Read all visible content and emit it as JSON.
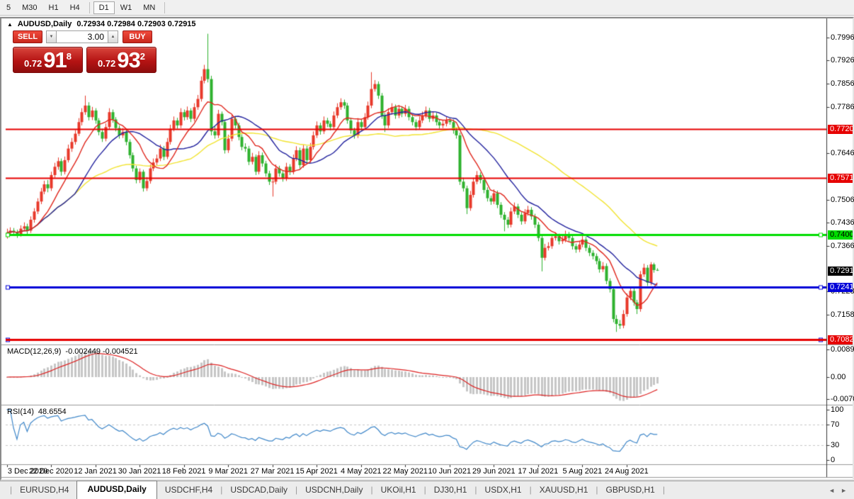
{
  "toolbar": {
    "timeframes": [
      "5",
      "M30",
      "H1",
      "H4",
      "D1",
      "W1",
      "MN"
    ],
    "active": "D1"
  },
  "icons": {
    "collapse": "▲",
    "spin_down": "▼",
    "spin_up": "▲",
    "tab_prev": "◄",
    "tab_next": "►"
  },
  "chart_header": {
    "title": "AUDUSD,Daily",
    "ohlc": "0.72934 0.72984 0.72903 0.72915"
  },
  "trade_panel": {
    "sell_label": "SELL",
    "buy_label": "BUY",
    "volume": "3.00",
    "sell_price": {
      "small": "0.72",
      "big": "91",
      "sup": "8"
    },
    "buy_price": {
      "small": "0.72",
      "big": "93",
      "sup": "2"
    }
  },
  "price_axis": {
    "ticks": [
      "0.79960",
      "0.79260",
      "0.78560",
      "0.77860",
      "0.76460",
      "0.75060",
      "0.74360",
      "0.73660",
      "0.72280",
      "0.71580"
    ]
  },
  "current_price": {
    "value": 0.72915,
    "label": "0.72915",
    "badge_bg": "#000000",
    "badge_text": "#ffffff"
  },
  "indicators": {
    "macd": {
      "label": "MACD(12,26,9)",
      "values": "-0.002449 -0.004521",
      "axis": [
        "0.00890",
        "0.00",
        "-0.00701"
      ]
    },
    "rsi": {
      "label": "RSI(14)",
      "value": "48.6554",
      "axis": [
        "100",
        "70",
        "30",
        "0"
      ]
    }
  },
  "date_axis": {
    "labels": [
      {
        "text": "3 Dec 2020",
        "index": 0
      },
      {
        "text": "22 Dec 2020",
        "index": 13
      },
      {
        "text": "12 Jan 2021",
        "index": 26
      },
      {
        "text": "30 Jan 2021",
        "index": 39
      },
      {
        "text": "18 Feb 2021",
        "index": 52
      },
      {
        "text": "9 Mar 2021",
        "index": 65
      },
      {
        "text": "27 Mar 2021",
        "index": 78
      },
      {
        "text": "15 Apr 2021",
        "index": 91
      },
      {
        "text": "4 May 2021",
        "index": 104
      },
      {
        "text": "22 May 2021",
        "index": 117
      },
      {
        "text": "10 Jun 2021",
        "index": 130
      },
      {
        "text": "29 Jun 2021",
        "index": 143
      },
      {
        "text": "17 Jul 2021",
        "index": 156
      },
      {
        "text": "5 Aug 2021",
        "index": 169
      },
      {
        "text": "24 Aug 2021",
        "index": 182
      }
    ]
  },
  "tabs": {
    "items": [
      "EURUSD,H4",
      "AUDUSD,Daily",
      "USDCHF,H4",
      "USDCAD,Daily",
      "USDCNH,Daily",
      "UKOil,H1",
      "DJ30,H1",
      "USDX,H1",
      "XAUUSD,H1",
      "GBPUSD,H1"
    ],
    "active_index": 1
  },
  "chart_data": {
    "type": "candlestick",
    "symbol": "AUDUSD",
    "period": "Daily",
    "ylim": [
      0.7068,
      0.80447
    ],
    "colors": {
      "bull": "#e8392a",
      "bear": "#2eb22e",
      "background": "#ffffff"
    },
    "moving_averages": [
      {
        "period": 55,
        "color": "#f2e431"
      },
      {
        "period": 21,
        "color": "#22229e"
      },
      {
        "period": 10,
        "color": "#e0261c"
      }
    ],
    "hlines": [
      {
        "price": 0.772,
        "label": "0.77200",
        "color": "#e60000",
        "text_color": "#ffffff",
        "width": 2,
        "handles": false
      },
      {
        "price": 0.75716,
        "label": "0.75716",
        "color": "#e60000",
        "text_color": "#ffffff",
        "width": 2,
        "handles": false
      },
      {
        "price": 0.74007,
        "label": "0.74007",
        "color": "#00dd00",
        "text_color": "#000000",
        "width": 3,
        "handles": true
      },
      {
        "price": 0.72411,
        "label": "0.72411",
        "color": "#0000d8",
        "text_color": "#ffffff",
        "width": 3,
        "handles": true
      },
      {
        "price": 0.70836,
        "label": "0.70836",
        "color": "#0000d8",
        "text_color": "#ffffff",
        "width": 3,
        "handles": true
      },
      {
        "price": 0.7082,
        "label": "0.70820",
        "color": "#e60000",
        "text_color": "#ffffff",
        "width": 3,
        "handles": false
      }
    ],
    "macd": {
      "fast": 12,
      "slow": 26,
      "signal": 9,
      "ylim": [
        -0.00866,
        0.01003
      ],
      "histogram_color": "#c6c6c6",
      "signal_color": "#dd2222"
    },
    "rsi": {
      "period": 14,
      "ylim": [
        -8.3,
        106.9
      ],
      "color": "#3f87c9",
      "levels": [
        70,
        30
      ]
    },
    "ohlc": [
      [
        0.7395,
        0.7418,
        0.7388,
        0.7405
      ],
      [
        0.7405,
        0.7422,
        0.7398,
        0.7412
      ],
      [
        0.7412,
        0.742,
        0.7396,
        0.7408
      ],
      [
        0.7408,
        0.7415,
        0.739,
        0.7402
      ],
      [
        0.7402,
        0.7428,
        0.7394,
        0.7418
      ],
      [
        0.7418,
        0.7437,
        0.741,
        0.7425
      ],
      [
        0.7425,
        0.7433,
        0.74,
        0.7412
      ],
      [
        0.7412,
        0.7455,
        0.7405,
        0.7445
      ],
      [
        0.7445,
        0.748,
        0.7436,
        0.747
      ],
      [
        0.747,
        0.751,
        0.7462,
        0.75
      ],
      [
        0.75,
        0.7541,
        0.7492,
        0.753
      ],
      [
        0.753,
        0.7563,
        0.7522,
        0.7552
      ],
      [
        0.7552,
        0.7565,
        0.7528,
        0.754
      ],
      [
        0.754,
        0.759,
        0.7532,
        0.758
      ],
      [
        0.758,
        0.7617,
        0.7572,
        0.7605
      ],
      [
        0.7605,
        0.7633,
        0.7596,
        0.7622
      ],
      [
        0.7622,
        0.763,
        0.7578,
        0.759
      ],
      [
        0.759,
        0.7636,
        0.7582,
        0.7625
      ],
      [
        0.7625,
        0.7672,
        0.7618,
        0.766
      ],
      [
        0.766,
        0.7692,
        0.765,
        0.768
      ],
      [
        0.768,
        0.7716,
        0.7672,
        0.7705
      ],
      [
        0.7705,
        0.7752,
        0.7698,
        0.774
      ],
      [
        0.774,
        0.7782,
        0.773,
        0.777
      ],
      [
        0.777,
        0.782,
        0.7762,
        0.779
      ],
      [
        0.779,
        0.78,
        0.7745,
        0.7755
      ],
      [
        0.7755,
        0.7786,
        0.7746,
        0.7775
      ],
      [
        0.7775,
        0.7782,
        0.7735,
        0.7745
      ],
      [
        0.7745,
        0.7752,
        0.77,
        0.771
      ],
      [
        0.771,
        0.772,
        0.768,
        0.769
      ],
      [
        0.769,
        0.7736,
        0.7682,
        0.7725
      ],
      [
        0.7725,
        0.7782,
        0.7718,
        0.777
      ],
      [
        0.777,
        0.7778,
        0.7738,
        0.7748
      ],
      [
        0.7748,
        0.7755,
        0.7712,
        0.7722
      ],
      [
        0.7722,
        0.773,
        0.769,
        0.77
      ],
      [
        0.77,
        0.7722,
        0.7692,
        0.771
      ],
      [
        0.771,
        0.7718,
        0.767,
        0.768
      ],
      [
        0.768,
        0.7688,
        0.763,
        0.764
      ],
      [
        0.764,
        0.7648,
        0.759,
        0.76
      ],
      [
        0.76,
        0.7608,
        0.7555,
        0.7565
      ],
      [
        0.7565,
        0.76,
        0.7556,
        0.759
      ],
      [
        0.759,
        0.7596,
        0.753,
        0.754
      ],
      [
        0.754,
        0.7574,
        0.7532,
        0.7562
      ],
      [
        0.7562,
        0.7612,
        0.7554,
        0.76
      ],
      [
        0.76,
        0.763,
        0.7592,
        0.7618
      ],
      [
        0.7618,
        0.7642,
        0.761,
        0.763
      ],
      [
        0.763,
        0.7672,
        0.7622,
        0.766
      ],
      [
        0.766,
        0.7668,
        0.7625,
        0.7635
      ],
      [
        0.7635,
        0.7692,
        0.7628,
        0.768
      ],
      [
        0.768,
        0.7732,
        0.7672,
        0.772
      ],
      [
        0.772,
        0.7757,
        0.7712,
        0.7745
      ],
      [
        0.7745,
        0.7753,
        0.772,
        0.773
      ],
      [
        0.773,
        0.7782,
        0.7722,
        0.777
      ],
      [
        0.777,
        0.7778,
        0.7745,
        0.7755
      ],
      [
        0.7755,
        0.7787,
        0.7747,
        0.7775
      ],
      [
        0.7775,
        0.7782,
        0.774,
        0.775
      ],
      [
        0.775,
        0.7797,
        0.7742,
        0.7785
      ],
      [
        0.7785,
        0.7822,
        0.7777,
        0.781
      ],
      [
        0.781,
        0.7878,
        0.7802,
        0.7865
      ],
      [
        0.7865,
        0.7913,
        0.7857,
        0.79
      ],
      [
        0.79,
        0.8007,
        0.786,
        0.787
      ],
      [
        0.787,
        0.788,
        0.77,
        0.7712
      ],
      [
        0.7712,
        0.773,
        0.769,
        0.77
      ],
      [
        0.77,
        0.7777,
        0.7692,
        0.7765
      ],
      [
        0.7765,
        0.7772,
        0.773,
        0.774
      ],
      [
        0.774,
        0.7748,
        0.7645,
        0.7655
      ],
      [
        0.7655,
        0.7702,
        0.7647,
        0.769
      ],
      [
        0.769,
        0.7762,
        0.7682,
        0.775
      ],
      [
        0.775,
        0.7758,
        0.772,
        0.773
      ],
      [
        0.773,
        0.7738,
        0.7685,
        0.7695
      ],
      [
        0.7695,
        0.7703,
        0.7655,
        0.7665
      ],
      [
        0.7665,
        0.7676,
        0.765,
        0.766
      ],
      [
        0.766,
        0.7668,
        0.761,
        0.762
      ],
      [
        0.762,
        0.7647,
        0.7612,
        0.7635
      ],
      [
        0.7635,
        0.7642,
        0.758,
        0.759
      ],
      [
        0.759,
        0.7652,
        0.7582,
        0.764
      ],
      [
        0.764,
        0.7648,
        0.7605,
        0.7615
      ],
      [
        0.7615,
        0.7623,
        0.7575,
        0.7585
      ],
      [
        0.7585,
        0.7593,
        0.755,
        0.756
      ],
      [
        0.756,
        0.7572,
        0.7515,
        0.756
      ],
      [
        0.756,
        0.7612,
        0.7552,
        0.76
      ],
      [
        0.76,
        0.7608,
        0.7575,
        0.7585
      ],
      [
        0.7585,
        0.7593,
        0.756,
        0.757
      ],
      [
        0.757,
        0.7617,
        0.7562,
        0.7605
      ],
      [
        0.7605,
        0.7613,
        0.758,
        0.759
      ],
      [
        0.759,
        0.7642,
        0.7582,
        0.763
      ],
      [
        0.763,
        0.7667,
        0.7622,
        0.7655
      ],
      [
        0.7655,
        0.7663,
        0.76,
        0.761
      ],
      [
        0.761,
        0.7672,
        0.7602,
        0.766
      ],
      [
        0.766,
        0.7668,
        0.7615,
        0.7625
      ],
      [
        0.7625,
        0.7677,
        0.7617,
        0.7665
      ],
      [
        0.7665,
        0.7712,
        0.7657,
        0.77
      ],
      [
        0.77,
        0.7742,
        0.7692,
        0.773
      ],
      [
        0.773,
        0.7738,
        0.7702,
        0.7712
      ],
      [
        0.7712,
        0.7757,
        0.7704,
        0.7745
      ],
      [
        0.7745,
        0.7753,
        0.7725,
        0.7735
      ],
      [
        0.7735,
        0.7743,
        0.7715,
        0.7725
      ],
      [
        0.7725,
        0.7772,
        0.7717,
        0.776
      ],
      [
        0.776,
        0.7797,
        0.7752,
        0.7785
      ],
      [
        0.7785,
        0.7812,
        0.7777,
        0.78
      ],
      [
        0.78,
        0.7808,
        0.778,
        0.779
      ],
      [
        0.779,
        0.7798,
        0.7735,
        0.7745
      ],
      [
        0.7745,
        0.7753,
        0.7705,
        0.7715
      ],
      [
        0.7715,
        0.7723,
        0.769,
        0.77
      ],
      [
        0.77,
        0.7752,
        0.7692,
        0.774
      ],
      [
        0.774,
        0.7748,
        0.7715,
        0.7725
      ],
      [
        0.7725,
        0.7767,
        0.7717,
        0.7755
      ],
      [
        0.7755,
        0.7802,
        0.7747,
        0.779
      ],
      [
        0.779,
        0.7891,
        0.7782,
        0.784
      ],
      [
        0.784,
        0.7867,
        0.7832,
        0.7855
      ],
      [
        0.7855,
        0.7863,
        0.781,
        0.782
      ],
      [
        0.782,
        0.7828,
        0.775,
        0.776
      ],
      [
        0.776,
        0.7768,
        0.771,
        0.773
      ],
      [
        0.773,
        0.7782,
        0.7722,
        0.777
      ],
      [
        0.777,
        0.7797,
        0.7762,
        0.7785
      ],
      [
        0.7785,
        0.7793,
        0.775,
        0.776
      ],
      [
        0.776,
        0.7792,
        0.7752,
        0.778
      ],
      [
        0.778,
        0.7788,
        0.7755,
        0.7765
      ],
      [
        0.7765,
        0.7792,
        0.7757,
        0.778
      ],
      [
        0.778,
        0.7788,
        0.7745,
        0.7755
      ],
      [
        0.7755,
        0.7763,
        0.773,
        0.774
      ],
      [
        0.774,
        0.7748,
        0.7715,
        0.7725
      ],
      [
        0.7725,
        0.7757,
        0.7717,
        0.7745
      ],
      [
        0.7745,
        0.7772,
        0.7737,
        0.776
      ],
      [
        0.776,
        0.7787,
        0.7752,
        0.7775
      ],
      [
        0.7775,
        0.7783,
        0.774,
        0.775
      ],
      [
        0.775,
        0.7772,
        0.7742,
        0.776
      ],
      [
        0.776,
        0.7768,
        0.773,
        0.774
      ],
      [
        0.774,
        0.7748,
        0.772,
        0.773
      ],
      [
        0.773,
        0.7747,
        0.7722,
        0.7735
      ],
      [
        0.7735,
        0.7757,
        0.7727,
        0.7745
      ],
      [
        0.7745,
        0.7753,
        0.7732,
        0.774
      ],
      [
        0.774,
        0.7748,
        0.7705,
        0.7715
      ],
      [
        0.7715,
        0.7723,
        0.769,
        0.77
      ],
      [
        0.77,
        0.7708,
        0.755,
        0.756
      ],
      [
        0.756,
        0.7572,
        0.753,
        0.754
      ],
      [
        0.754,
        0.7548,
        0.7462,
        0.748
      ],
      [
        0.748,
        0.7532,
        0.7472,
        0.752
      ],
      [
        0.752,
        0.7572,
        0.7512,
        0.756
      ],
      [
        0.756,
        0.7592,
        0.7552,
        0.758
      ],
      [
        0.758,
        0.7588,
        0.7555,
        0.7565
      ],
      [
        0.7565,
        0.7573,
        0.7525,
        0.7535
      ],
      [
        0.7535,
        0.7543,
        0.75,
        0.751
      ],
      [
        0.751,
        0.7518,
        0.749,
        0.75
      ],
      [
        0.75,
        0.7537,
        0.7492,
        0.7525
      ],
      [
        0.7525,
        0.7533,
        0.748,
        0.749
      ],
      [
        0.749,
        0.7498,
        0.745,
        0.746
      ],
      [
        0.746,
        0.7468,
        0.741,
        0.7445
      ],
      [
        0.7445,
        0.7453,
        0.742,
        0.743
      ],
      [
        0.743,
        0.7482,
        0.7422,
        0.747
      ],
      [
        0.747,
        0.7497,
        0.7462,
        0.7485
      ],
      [
        0.7485,
        0.7493,
        0.745,
        0.746
      ],
      [
        0.746,
        0.7468,
        0.743,
        0.744
      ],
      [
        0.744,
        0.7477,
        0.7432,
        0.7465
      ],
      [
        0.7465,
        0.7487,
        0.7457,
        0.7475
      ],
      [
        0.7475,
        0.7483,
        0.7445,
        0.7455
      ],
      [
        0.7455,
        0.7463,
        0.742,
        0.743
      ],
      [
        0.743,
        0.7438,
        0.738,
        0.739
      ],
      [
        0.739,
        0.7398,
        0.7289,
        0.733
      ],
      [
        0.733,
        0.7372,
        0.7322,
        0.736
      ],
      [
        0.736,
        0.7377,
        0.7352,
        0.7365
      ],
      [
        0.7365,
        0.7402,
        0.7357,
        0.739
      ],
      [
        0.739,
        0.7407,
        0.7382,
        0.7395
      ],
      [
        0.7395,
        0.7403,
        0.737,
        0.738
      ],
      [
        0.738,
        0.7397,
        0.7372,
        0.7385
      ],
      [
        0.7385,
        0.7412,
        0.7377,
        0.74
      ],
      [
        0.74,
        0.7408,
        0.738,
        0.739
      ],
      [
        0.739,
        0.7398,
        0.7355,
        0.7365
      ],
      [
        0.7365,
        0.7373,
        0.7345,
        0.7355
      ],
      [
        0.7355,
        0.7382,
        0.7347,
        0.737
      ],
      [
        0.737,
        0.7397,
        0.7362,
        0.7385
      ],
      [
        0.7385,
        0.7393,
        0.735,
        0.736
      ],
      [
        0.736,
        0.7368,
        0.7335,
        0.7345
      ],
      [
        0.7345,
        0.7353,
        0.7325,
        0.7335
      ],
      [
        0.7335,
        0.7343,
        0.731,
        0.732
      ],
      [
        0.732,
        0.7328,
        0.7285,
        0.7295
      ],
      [
        0.7295,
        0.7317,
        0.7287,
        0.7305
      ],
      [
        0.7305,
        0.7313,
        0.725,
        0.726
      ],
      [
        0.726,
        0.7268,
        0.7225,
        0.7235
      ],
      [
        0.7235,
        0.7243,
        0.7135,
        0.7145
      ],
      [
        0.7145,
        0.7157,
        0.7106,
        0.713
      ],
      [
        0.713,
        0.7142,
        0.7115,
        0.7125
      ],
      [
        0.7125,
        0.7172,
        0.7117,
        0.716
      ],
      [
        0.716,
        0.7222,
        0.7152,
        0.721
      ],
      [
        0.721,
        0.7242,
        0.7202,
        0.723
      ],
      [
        0.723,
        0.7238,
        0.7185,
        0.7195
      ],
      [
        0.7195,
        0.7203,
        0.716,
        0.7175
      ],
      [
        0.7175,
        0.729,
        0.7167,
        0.728
      ],
      [
        0.728,
        0.7312,
        0.7272,
        0.73
      ],
      [
        0.73,
        0.7308,
        0.7245,
        0.7255
      ],
      [
        0.7255,
        0.7317,
        0.7247,
        0.731
      ],
      [
        0.731,
        0.7315,
        0.7285,
        0.7293
      ],
      [
        0.72934,
        0.72984,
        0.72903,
        0.72915
      ]
    ]
  }
}
